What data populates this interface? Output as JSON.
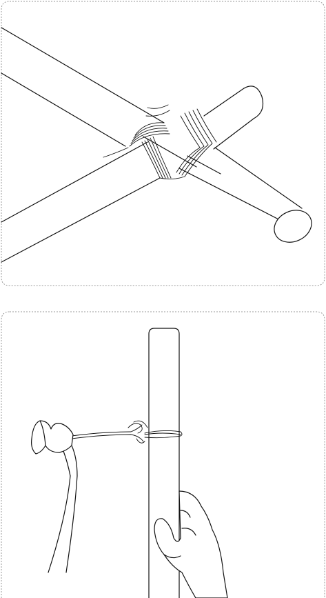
{
  "panels": [
    {
      "id": "top",
      "illustration": "crossing-poles-tied-with-wire-icon"
    },
    {
      "id": "bottom",
      "illustration": "hands-twisting-wire-on-pole-icon"
    }
  ]
}
